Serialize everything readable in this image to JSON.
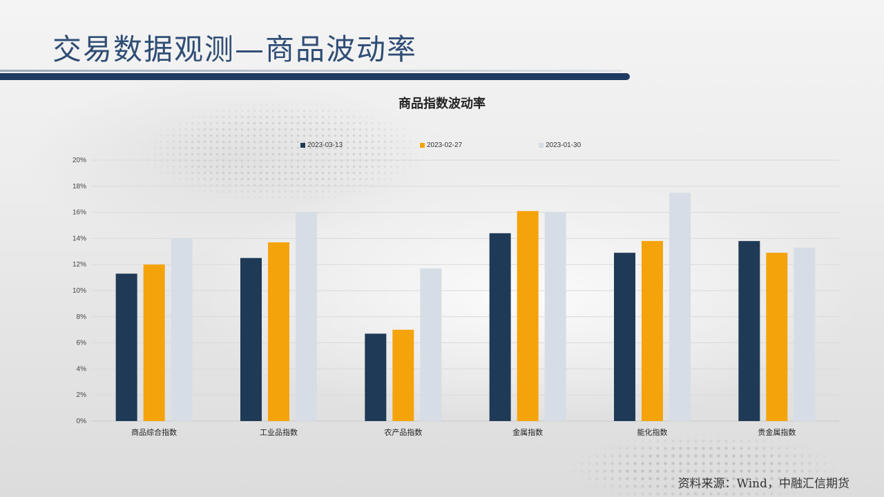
{
  "page": {
    "title": "交易数据观测—商品波动率",
    "source": "资料来源：Wind，中融汇信期货"
  },
  "chart_data": {
    "type": "bar",
    "title": "商品指数波动率",
    "xlabel": "",
    "ylabel": "",
    "categories": [
      "商品综合指数",
      "工业品指数",
      "农产品指数",
      "金属指数",
      "能化指数",
      "贵金属指数"
    ],
    "series": [
      {
        "name": "2023-03-13",
        "color": "#1f3a56",
        "values": [
          11.3,
          12.5,
          6.7,
          14.4,
          12.9,
          13.8
        ]
      },
      {
        "name": "2023-02-27",
        "color": "#f5a30a",
        "values": [
          12.0,
          13.7,
          7.0,
          16.1,
          13.8,
          12.9
        ]
      },
      {
        "name": "2023-01-30",
        "color": "#d6dde6",
        "values": [
          14.0,
          16.0,
          11.7,
          16.0,
          17.5,
          13.3
        ]
      }
    ],
    "ylim": [
      0,
      20
    ],
    "yticks": [
      "0%",
      "2%",
      "4%",
      "6%",
      "8%",
      "10%",
      "12%",
      "14%",
      "16%",
      "18%",
      "20%"
    ],
    "grid": true,
    "legend_position": "top"
  }
}
